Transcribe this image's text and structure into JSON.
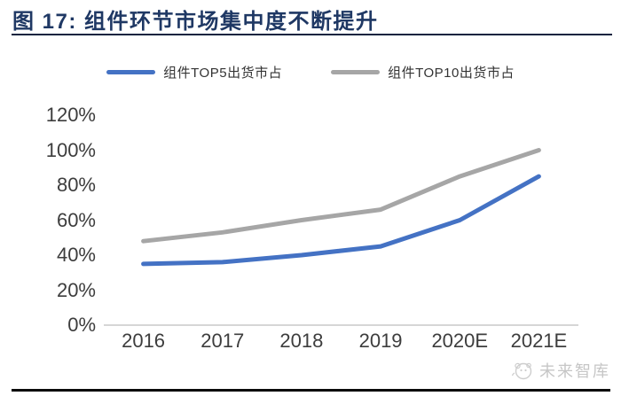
{
  "figure": {
    "title": "图 17:  组件环节市场集中度不断提升",
    "title_color": "#1F3864",
    "watermark": "未来智库"
  },
  "chart_data": {
    "type": "line",
    "title": "组件环节市场集中度不断提升",
    "categories": [
      "2016",
      "2017",
      "2018",
      "2019",
      "2020E",
      "2021E"
    ],
    "series": [
      {
        "name": "组件TOP5出货市占",
        "color": "#4472C4",
        "values": [
          35,
          36,
          40,
          45,
          60,
          85
        ]
      },
      {
        "name": "组件TOP10出货市占",
        "color": "#A6A6A6",
        "values": [
          48,
          53,
          60,
          66,
          85,
          100
        ]
      }
    ],
    "unit": "%",
    "ylim": [
      0,
      120
    ],
    "ytick_labels": [
      "120%",
      "100%",
      "80%",
      "60%",
      "40%",
      "20%",
      "0%"
    ],
    "ytick_values": [
      120,
      100,
      80,
      60,
      40,
      20,
      0
    ],
    "grid": false,
    "legend_position": "top",
    "axis_line_color": "#c8c8c8"
  }
}
